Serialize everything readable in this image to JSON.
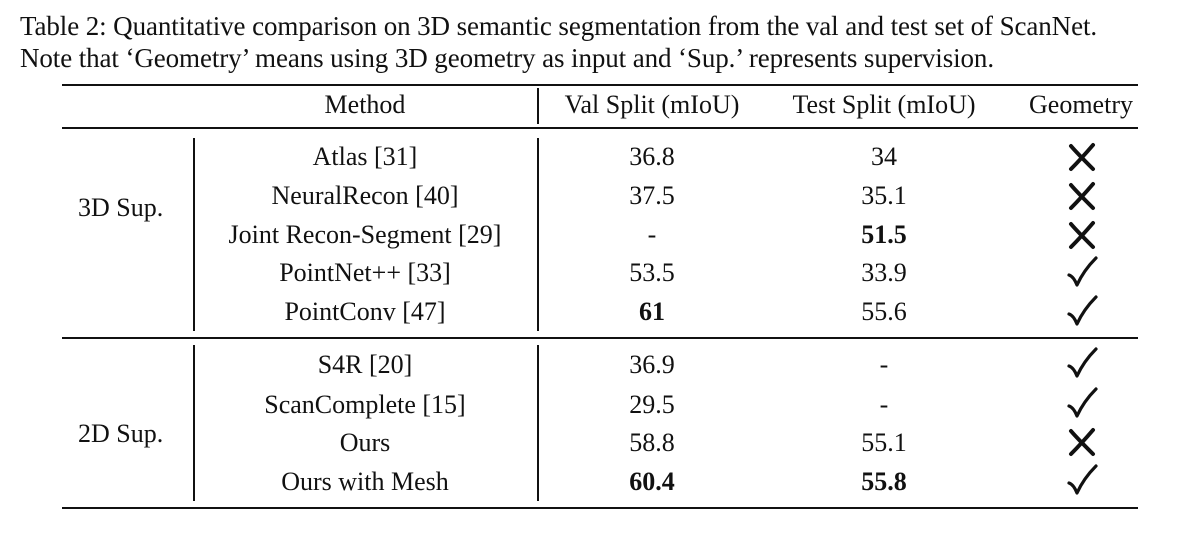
{
  "caption": {
    "line1": "Table 2: Quantitative comparison on 3D semantic segmentation from the val and test set of ScanNet.",
    "line2": "Note that ‘Geometry’ means using 3D geometry as input and ‘Sup.’ represents supervision."
  },
  "headers": {
    "method": "Method",
    "val": "Val Split (mIoU)",
    "test": "Test Split (mIoU)",
    "geometry": "Geometry"
  },
  "groups": [
    {
      "label": "3D Sup.",
      "rows": [
        {
          "method": "Atlas [31]",
          "val": "36.8",
          "test": "34",
          "geometry": "cross"
        },
        {
          "method": "NeuralRecon [40]",
          "val": "37.5",
          "test": "35.1",
          "geometry": "cross"
        },
        {
          "method": "Joint Recon-Segment [29]",
          "val": "-",
          "test": "51.5",
          "geometry": "cross"
        },
        {
          "method": "PointNet++ [33]",
          "val": "53.5",
          "test": "33.9",
          "geometry": "check"
        },
        {
          "method": "PointConv [47]",
          "val": "61",
          "test": "55.6",
          "geometry": "check"
        }
      ]
    },
    {
      "label": "2D Sup.",
      "rows": [
        {
          "method": "S4R [20]",
          "val": "36.9",
          "test": "-",
          "geometry": "check"
        },
        {
          "method": "ScanComplete [15]",
          "val": "29.5",
          "test": "-",
          "geometry": "check"
        },
        {
          "method": "Ours",
          "val": "58.8",
          "test": "55.1",
          "geometry": "cross"
        },
        {
          "method": "Ours with Mesh",
          "val": "60.4",
          "test": "55.8",
          "geometry": "check"
        }
      ]
    }
  ]
}
